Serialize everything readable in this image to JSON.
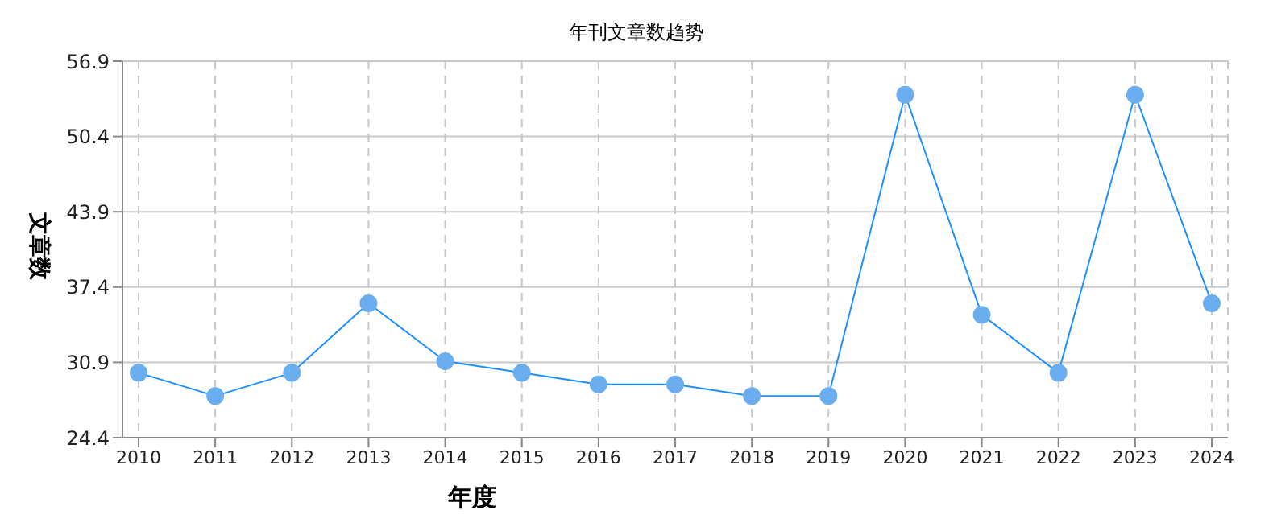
{
  "chart_data": {
    "type": "line",
    "title": "年刊文章数趋势",
    "xlabel": "年度",
    "ylabel": "文章数",
    "categories": [
      "2010",
      "2011",
      "2012",
      "2013",
      "2014",
      "2015",
      "2016",
      "2017",
      "2018",
      "2019",
      "2020",
      "2021",
      "2022",
      "2023",
      "2024"
    ],
    "series": [
      {
        "color": "#1e90ff",
        "values": [
          30,
          28,
          30,
          36,
          31,
          30,
          29,
          29,
          28,
          28,
          54,
          35,
          30,
          54,
          36
        ]
      }
    ],
    "ylim": [
      24.4,
      56.9
    ],
    "yticks": [
      24.4,
      30.9,
      37.4,
      43.9,
      50.4,
      56.9
    ],
    "grid": true,
    "marker": "circle",
    "line_style": "solid"
  }
}
